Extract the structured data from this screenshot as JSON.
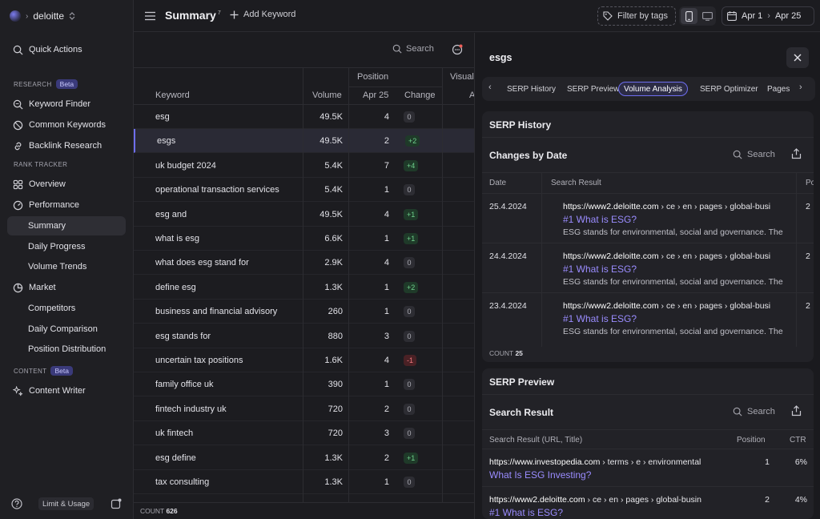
{
  "workspace": {
    "name": "deloitte"
  },
  "sidebar": {
    "quick_actions": "Quick Actions",
    "research_label": "RESEARCH",
    "research_badge": "Beta",
    "research_items": [
      "Keyword Finder",
      "Common Keywords",
      "Backlink Research"
    ],
    "rank_tracker_label": "RANK TRACKER",
    "overview": "Overview",
    "performance": "Performance",
    "performance_items": [
      "Summary",
      "Daily Progress",
      "Volume Trends"
    ],
    "market": "Market",
    "market_items": [
      "Competitors",
      "Daily Comparison",
      "Position Distribution"
    ],
    "content_label": "CONTENT",
    "content_badge": "Beta",
    "content_writer": "Content Writer",
    "limit_usage": "Limit & Usage"
  },
  "topbar": {
    "title": "Summary",
    "title_sup": "7",
    "add_keyword": "Add Keyword",
    "filter_tags": "Filter by tags",
    "date_from": "Apr 1",
    "date_to": "Apr 25"
  },
  "table": {
    "search_placeholder": "Search",
    "headers": {
      "keyword": "Keyword",
      "volume": "Volume",
      "position_group": "Position",
      "date": "Apr 25",
      "change": "Change",
      "visual": "Visual",
      "visual_sub": "A"
    },
    "rows": [
      {
        "keyword": "esg",
        "volume": "49.5K",
        "position": "4",
        "change": "0",
        "dir": "zero"
      },
      {
        "keyword": "esgs",
        "volume": "49.5K",
        "position": "2",
        "change": "+2",
        "dir": "up"
      },
      {
        "keyword": "uk budget 2024",
        "volume": "5.4K",
        "position": "7",
        "change": "+4",
        "dir": "up"
      },
      {
        "keyword": "operational transaction services",
        "volume": "5.4K",
        "position": "1",
        "change": "0",
        "dir": "zero"
      },
      {
        "keyword": "esg and",
        "volume": "49.5K",
        "position": "4",
        "change": "+1",
        "dir": "up"
      },
      {
        "keyword": "what is esg",
        "volume": "6.6K",
        "position": "1",
        "change": "+1",
        "dir": "up"
      },
      {
        "keyword": "what does esg stand for",
        "volume": "2.9K",
        "position": "4",
        "change": "0",
        "dir": "zero"
      },
      {
        "keyword": "define esg",
        "volume": "1.3K",
        "position": "1",
        "change": "+2",
        "dir": "up"
      },
      {
        "keyword": "business and financial advisory",
        "volume": "260",
        "position": "1",
        "change": "0",
        "dir": "zero"
      },
      {
        "keyword": "esg stands for",
        "volume": "880",
        "position": "3",
        "change": "0",
        "dir": "zero"
      },
      {
        "keyword": "uncertain tax positions",
        "volume": "1.6K",
        "position": "4",
        "change": "-1",
        "dir": "down"
      },
      {
        "keyword": "family office uk",
        "volume": "390",
        "position": "1",
        "change": "0",
        "dir": "zero"
      },
      {
        "keyword": "fintech industry uk",
        "volume": "720",
        "position": "2",
        "change": "0",
        "dir": "zero"
      },
      {
        "keyword": "uk fintech",
        "volume": "720",
        "position": "3",
        "change": "0",
        "dir": "zero"
      },
      {
        "keyword": "esg define",
        "volume": "1.3K",
        "position": "2",
        "change": "+1",
        "dir": "up"
      },
      {
        "keyword": "tax consulting",
        "volume": "1.3K",
        "position": "1",
        "change": "0",
        "dir": "zero"
      }
    ],
    "count_label": "COUNT",
    "count_value": "626"
  },
  "panel": {
    "title": "esgs",
    "tabs": [
      "SERP History",
      "SERP Preview",
      "Volume Analysis",
      "SERP Optimizer",
      "Pages"
    ],
    "active_tab": "Volume Analysis",
    "history": {
      "heading": "SERP History",
      "subheading": "Changes by Date",
      "search_placeholder": "Search",
      "col_date": "Date",
      "col_result": "Search Result",
      "col_pos": "Po",
      "entries": [
        {
          "date": "25.4.2024",
          "domain": "https://www2.deloitte.com",
          "path": " › ce › en › pages › global-busi",
          "title": "#1 What is ESG?",
          "snippet": "ESG stands for environmental, social and governance. The",
          "pos": "2"
        },
        {
          "date": "24.4.2024",
          "domain": "https://www2.deloitte.com",
          "path": " › ce › en › pages › global-busi",
          "title": "#1 What is ESG?",
          "snippet": "ESG stands for environmental, social and governance. The",
          "pos": "2"
        },
        {
          "date": "23.4.2024",
          "domain": "https://www2.deloitte.com",
          "path": " › ce › en › pages › global-busi",
          "title": "#1 What is ESG?",
          "snippet": "ESG stands for environmental, social and governance. The",
          "pos": "2"
        }
      ],
      "count_label": "COUNT",
      "count_value": "25"
    },
    "preview": {
      "heading": "SERP Preview",
      "subheading": "Search Result",
      "search_placeholder": "Search",
      "col_result": "Search Result (URL, Title)",
      "col_position": "Position",
      "col_ctr": "CTR",
      "entries": [
        {
          "domain": "https://www.investopedia.com",
          "path": " › terms › e › environmental",
          "title": "What Is ESG Investing?",
          "position": "1",
          "ctr": "6%"
        },
        {
          "domain": "https://www2.deloitte.com",
          "path": " › ce › en › pages › global-busin",
          "title": "#1 What is ESG?",
          "position": "2",
          "ctr": "4%"
        }
      ]
    }
  },
  "colors": {
    "accent": "#6e6ef0",
    "link": "#9a8cff",
    "positive": "#6fd08c",
    "negative": "#f0787e"
  }
}
